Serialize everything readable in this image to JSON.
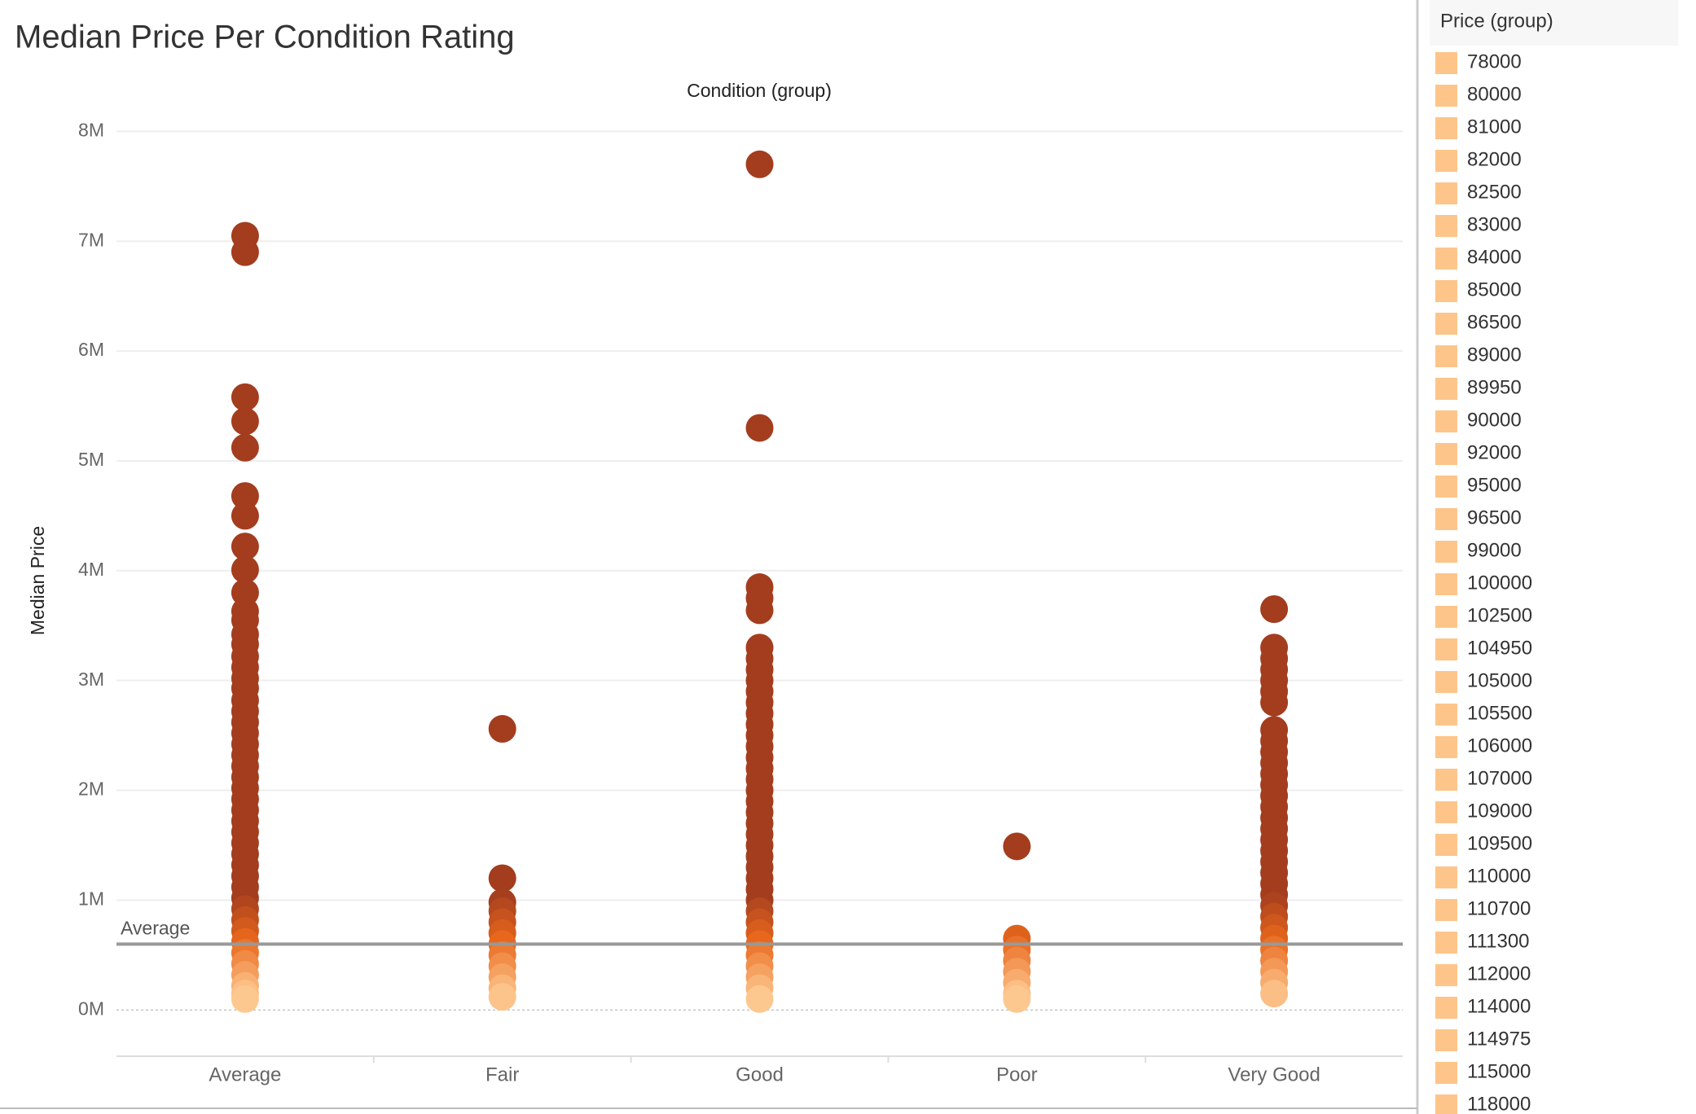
{
  "chart_data": {
    "type": "strip",
    "title": "Median Price Per Condition Rating",
    "x_axis_title": "Condition (group)",
    "y_axis_title": "Median Price",
    "categories": [
      "Average",
      "Fair",
      "Good",
      "Poor",
      "Very Good"
    ],
    "values": [
      [
        7050000,
        6900000,
        5580000,
        5360000,
        5120000,
        4680000,
        4500000,
        4220000,
        4010000,
        3800000,
        3630000,
        3550000,
        3420000,
        3330000,
        3220000,
        3120000,
        3020000,
        2930000,
        2820000,
        2720000,
        2620000,
        2520000,
        2420000,
        2320000,
        2220000,
        2120000,
        2020000,
        1920000,
        1820000,
        1720000,
        1620000,
        1520000,
        1420000,
        1320000,
        1220000,
        1120000,
        1020000,
        920000,
        820000,
        720000,
        620000,
        520000,
        420000,
        320000,
        220000,
        150000,
        100000
      ],
      [
        2560000,
        1200000,
        980000,
        900000,
        800000,
        700000,
        600000,
        500000,
        400000,
        300000,
        200000,
        120000
      ],
      [
        7700000,
        5300000,
        3850000,
        3750000,
        3640000,
        3300000,
        3200000,
        3100000,
        3000000,
        2900000,
        2800000,
        2700000,
        2600000,
        2500000,
        2400000,
        2300000,
        2200000,
        2100000,
        2000000,
        1900000,
        1800000,
        1700000,
        1600000,
        1500000,
        1400000,
        1300000,
        1200000,
        1100000,
        1000000,
        900000,
        800000,
        700000,
        600000,
        500000,
        400000,
        300000,
        200000,
        100000
      ],
      [
        1490000,
        650000,
        550000,
        450000,
        350000,
        250000,
        150000,
        100000
      ],
      [
        3650000,
        3300000,
        3200000,
        3100000,
        3000000,
        2900000,
        2800000,
        2550000,
        2450000,
        2350000,
        2250000,
        2150000,
        2050000,
        1950000,
        1850000,
        1750000,
        1650000,
        1550000,
        1450000,
        1350000,
        1250000,
        1150000,
        1050000,
        950000,
        850000,
        750000,
        650000,
        550000,
        450000,
        350000,
        250000,
        150000
      ]
    ],
    "color_stops": [
      [
        100000,
        "#fdc88f"
      ],
      [
        600000,
        "#e8671c"
      ],
      [
        1000000,
        "#a33d1e"
      ]
    ],
    "ylim": [
      -413000,
      8210000
    ],
    "yticks": [
      {
        "value": 0,
        "label": "0M"
      },
      {
        "value": 1000000,
        "label": "1M"
      },
      {
        "value": 2000000,
        "label": "2M"
      },
      {
        "value": 3000000,
        "label": "3M"
      },
      {
        "value": 4000000,
        "label": "4M"
      },
      {
        "value": 5000000,
        "label": "5M"
      },
      {
        "value": 6000000,
        "label": "6M"
      },
      {
        "value": 7000000,
        "label": "7M"
      },
      {
        "value": 8000000,
        "label": "8M"
      }
    ],
    "grid": true,
    "reference_line": {
      "label": "Average",
      "value": 600000
    },
    "legend": {
      "title": "Price (group)",
      "color": "#fdc58a",
      "items": [
        "78000",
        "80000",
        "81000",
        "82000",
        "82500",
        "83000",
        "84000",
        "85000",
        "86500",
        "89000",
        "89950",
        "90000",
        "92000",
        "95000",
        "96500",
        "99000",
        "100000",
        "102500",
        "104950",
        "105000",
        "105500",
        "106000",
        "107000",
        "109000",
        "109500",
        "110000",
        "110700",
        "111300",
        "112000",
        "114000",
        "114975",
        "115000",
        "118000"
      ]
    }
  }
}
